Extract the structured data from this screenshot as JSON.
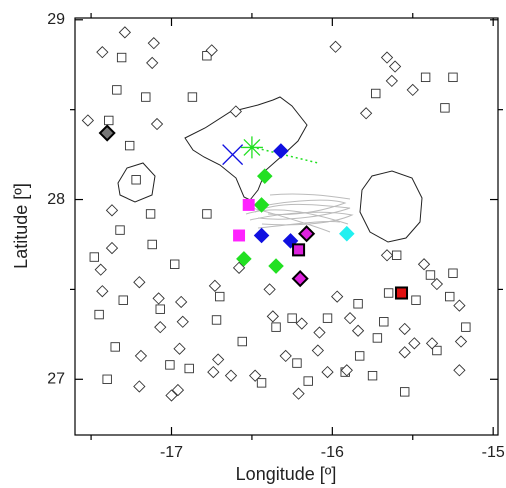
{
  "chart_data": {
    "type": "scatter",
    "xlabel": "Longitude [º]",
    "ylabel": "Latitude [º]",
    "xlim": [
      -17.6,
      -14.97
    ],
    "ylim": [
      26.69,
      29.01
    ],
    "xticks": [
      -17,
      -16,
      -15
    ],
    "yticks": [
      27,
      28,
      29
    ],
    "xminorticks": [
      -17.5,
      -16.5,
      -15.5
    ],
    "yminorticks": [
      27.5,
      28.5
    ],
    "series": [
      {
        "marker": "square",
        "color": "none",
        "edge": "#333",
        "x": [
          -17.31,
          -17.34,
          -17.16,
          -16.87,
          -16.78,
          -17.39,
          -17.26,
          -17.22,
          -17.13,
          -17.32,
          -17.48,
          -17.12,
          -16.98,
          -17.3,
          -17.45,
          -17.35,
          -17.4,
          -17.01,
          -16.89,
          -16.7,
          -16.72,
          -16.56,
          -16.35,
          -16.44,
          -16.22,
          -16.25,
          -16.03,
          -15.84,
          -15.72,
          -15.68,
          -15.83,
          -15.75,
          -15.92,
          -15.55,
          -15.48,
          -15.39,
          -15.25,
          -15.27,
          -15.17,
          -15.35,
          -15.6,
          -15.65,
          -15.25,
          -15.3,
          -15.73,
          -15.42,
          -16.15,
          -16.78,
          -17.07
        ],
        "y": [
          28.79,
          28.61,
          28.57,
          28.57,
          28.8,
          28.44,
          28.3,
          28.11,
          27.92,
          27.83,
          27.68,
          27.75,
          27.64,
          27.44,
          27.36,
          27.18,
          27.0,
          27.08,
          27.06,
          27.46,
          27.33,
          27.21,
          27.29,
          26.98,
          27.09,
          27.34,
          27.34,
          27.42,
          27.23,
          27.32,
          27.13,
          27.02,
          27.04,
          26.93,
          27.44,
          27.58,
          27.59,
          27.46,
          27.29,
          27.16,
          27.69,
          27.48,
          28.68,
          28.51,
          28.59,
          28.68,
          26.99,
          27.92,
          27.39
        ]
      },
      {
        "marker": "diamond",
        "color": "none",
        "edge": "#333",
        "x": [
          -17.29,
          -17.43,
          -17.52,
          -17.11,
          -17.12,
          -16.75,
          -17.09,
          -17.37,
          -17.37,
          -17.44,
          -17.2,
          -17.08,
          -17.43,
          -16.94,
          -16.93,
          -16.73,
          -17.07,
          -16.95,
          -17.19,
          -16.96,
          -17.0,
          -17.2,
          -16.74,
          -16.63,
          -16.58,
          -16.39,
          -16.37,
          -16.19,
          -16.09,
          -16.08,
          -15.97,
          -15.89,
          -15.84,
          -16.03,
          -15.55,
          -15.55,
          -15.49,
          -15.38,
          -15.2,
          -15.21,
          -15.21,
          -15.35,
          -15.43,
          -15.66,
          -15.79,
          -15.66,
          -15.61,
          -15.5,
          -15.63,
          -16.6,
          -15.98,
          -16.21,
          -15.91,
          -16.29,
          -16.48,
          -16.71
        ],
        "y": [
          28.93,
          28.82,
          28.44,
          28.87,
          28.76,
          28.83,
          28.42,
          27.94,
          27.73,
          27.61,
          27.54,
          27.45,
          27.49,
          27.43,
          27.32,
          27.52,
          27.29,
          27.17,
          27.13,
          26.94,
          26.91,
          26.96,
          27.04,
          27.02,
          27.62,
          27.5,
          27.35,
          27.31,
          27.16,
          27.26,
          27.46,
          27.34,
          27.27,
          27.04,
          27.28,
          27.15,
          27.2,
          27.2,
          27.21,
          27.05,
          27.41,
          27.53,
          27.64,
          27.69,
          28.48,
          28.79,
          28.74,
          28.61,
          28.66,
          28.49,
          28.85,
          26.92,
          27.05,
          27.13,
          27.02,
          27.11
        ]
      },
      {
        "marker": "diamond",
        "color": "#1010e0",
        "edge": "#1010e0",
        "x": [
          -16.32,
          -16.44,
          -16.26
        ],
        "y": [
          28.27,
          27.8,
          27.77
        ]
      },
      {
        "marker": "diamond",
        "color": "#22e022",
        "edge": "#22e022",
        "x": [
          -16.42,
          -16.44,
          -16.55,
          -16.35
        ],
        "y": [
          28.13,
          27.97,
          27.67,
          27.63
        ]
      },
      {
        "marker": "square",
        "color": "#ff22ff",
        "edge": "#ff22ff",
        "x": [
          -16.52,
          -16.58
        ],
        "y": [
          27.97,
          27.8
        ]
      },
      {
        "marker": "diamond",
        "color": "#dd22dd",
        "edge": "#000",
        "x": [
          -16.16,
          -16.2
        ],
        "y": [
          27.81,
          27.56
        ]
      },
      {
        "marker": "square",
        "color": "#dd22dd",
        "edge": "#000",
        "x": [
          -16.21
        ],
        "y": [
          27.72
        ]
      },
      {
        "marker": "diamond",
        "color": "#22f0f0",
        "edge": "#22f0f0",
        "x": [
          -15.91
        ],
        "y": [
          27.81
        ]
      },
      {
        "marker": "diamond",
        "color": "#777",
        "edge": "#000",
        "x": [
          -17.4
        ],
        "y": [
          28.37
        ]
      },
      {
        "marker": "square",
        "color": "#e01010",
        "edge": "#000",
        "x": [
          -15.57
        ],
        "y": [
          27.48
        ]
      },
      {
        "marker": "x",
        "color": "#1010e0",
        "edge": "#1010e0",
        "x": [
          -16.62
        ],
        "y": [
          28.25
        ]
      },
      {
        "marker": "asterisk",
        "color": "#22e022",
        "edge": "#22e022",
        "x": [
          -16.5
        ],
        "y": [
          28.29
        ]
      }
    ]
  }
}
